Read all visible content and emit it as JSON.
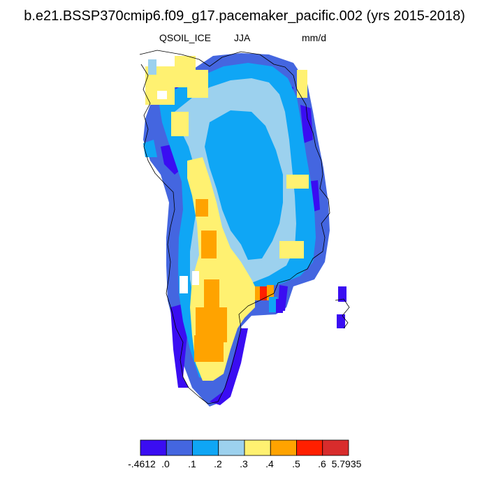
{
  "title": "b.e21.BSSP370cmip6.f09_g17.pacemaker_pacific.002 (yrs 2015-2018)",
  "subtitle_left": "QSOIL_ICE",
  "subtitle_center": "JJA",
  "subtitle_right": "mm/d",
  "colorbar": {
    "colors": [
      "#3a0df2",
      "#4466e0",
      "#0fa6f5",
      "#9cd1ee",
      "#fff171",
      "#ffa300",
      "#ff1f00",
      "#d82c2c"
    ],
    "labels": [
      "-.4612",
      ".0",
      ".1",
      ".2",
      ".3",
      ".4",
      ".5",
      ".6",
      "5.7935"
    ]
  },
  "coast_color": "#000000"
}
